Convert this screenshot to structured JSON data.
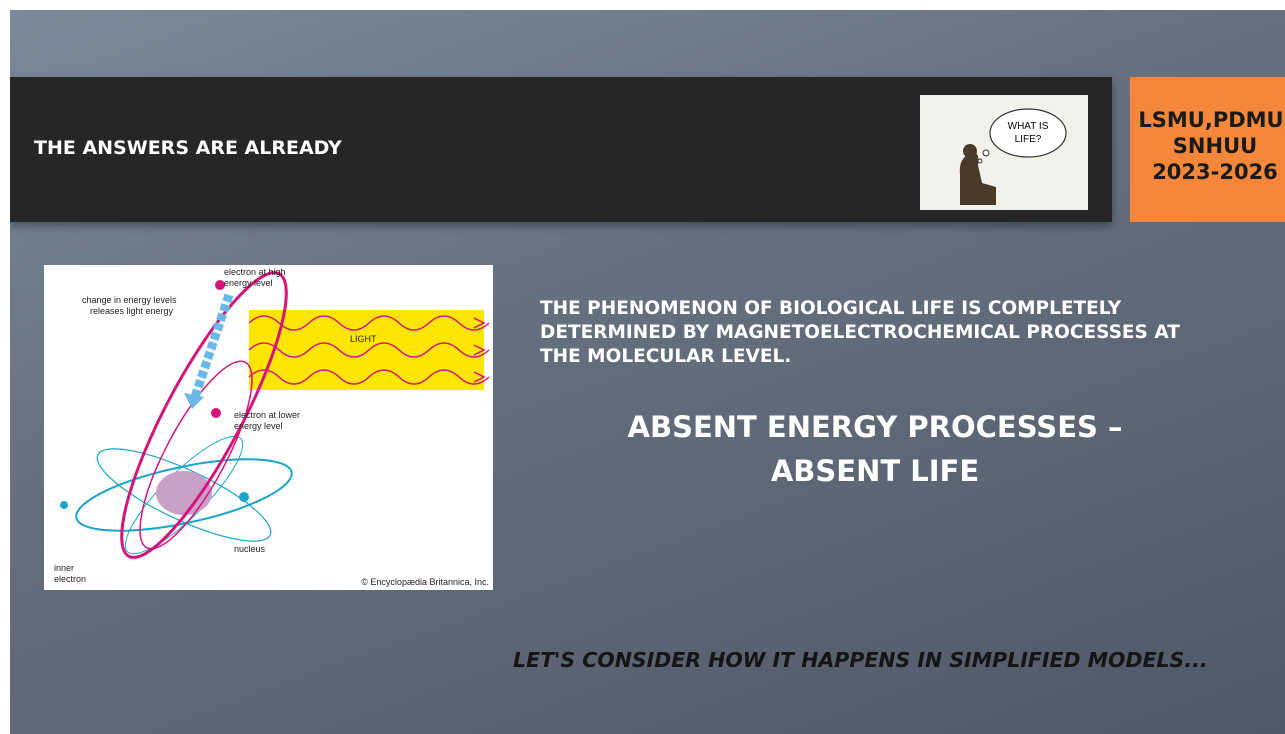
{
  "header": {
    "title": "THE ANSWERS ARE ALREADY",
    "thumbnail_text": [
      "WHAT IS",
      "LIFE?"
    ],
    "badge": [
      "LSMU,PDMU,",
      "SNHUU",
      "2023-2026"
    ]
  },
  "diagram": {
    "high_label": [
      "electron at high",
      "energy level"
    ],
    "change_label": [
      "change in energy levels",
      "releases light energy"
    ],
    "light_label": "LIGHT",
    "low_label": [
      "electron at lower",
      "energy level"
    ],
    "nucleus_label": "nucleus",
    "inner_label": [
      "inner",
      "electron"
    ],
    "credit": "© Encyclopædia Britannica, Inc."
  },
  "body": {
    "statement": [
      "THE PHENOMENON OF BIOLOGICAL LIFE IS COMPLETELY",
      "DETERMINED BY MAGNETOELECTROCHEMICAL PROCESSES AT",
      "THE MOLECULAR LEVEL."
    ],
    "heading": [
      "ABSENT ENERGY PROCESSES –",
      "ABSENT LIFE"
    ],
    "footer": "LET'S CONSIDER HOW IT HAPPENS IN SIMPLIFIED MODELS..."
  }
}
